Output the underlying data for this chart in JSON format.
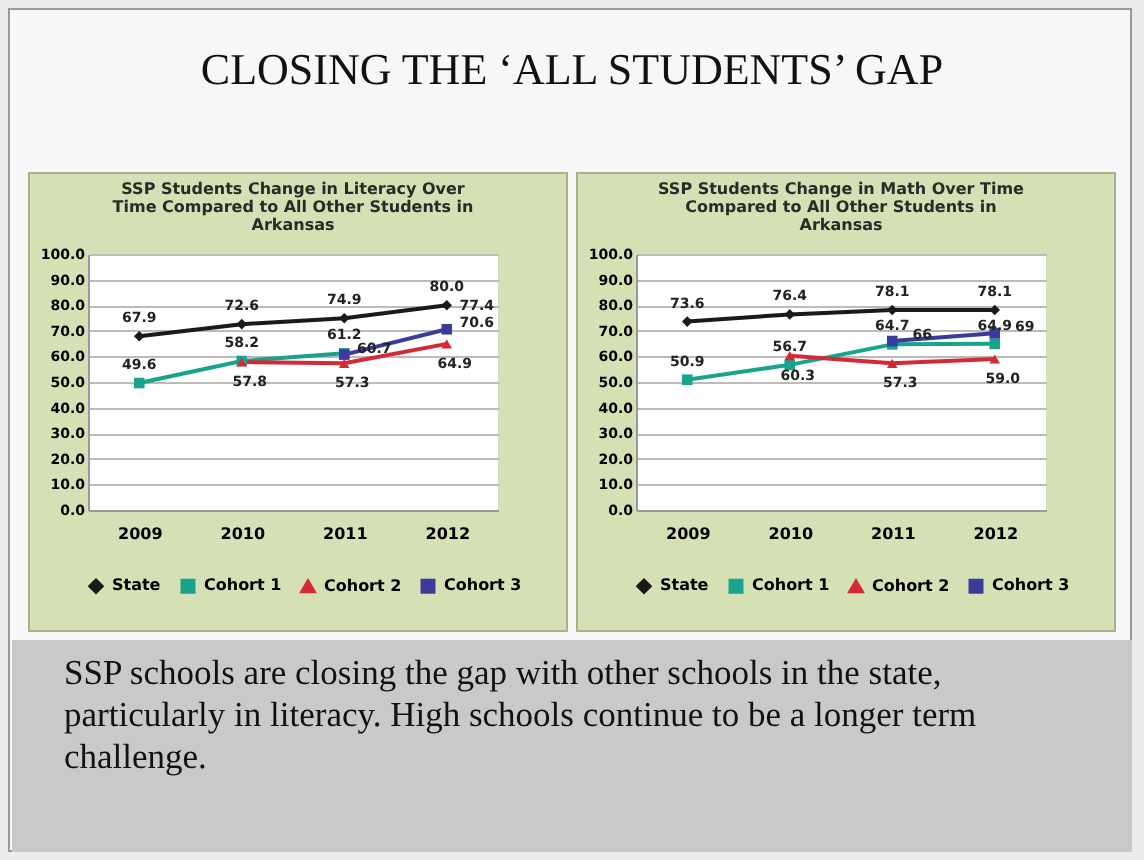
{
  "chart_data": [
    {
      "type": "line",
      "title": "SSP Students Change in Literacy Over Time Compared to All Other Students in Arkansas",
      "categories": [
        "2009",
        "2010",
        "2011",
        "2012"
      ],
      "series": [
        {
          "name": "State",
          "color": "#1a1a1a",
          "marker": "diamond",
          "values": [
            67.9,
            72.6,
            74.9,
            80.0
          ],
          "value_labels": [
            "67.9",
            "72.6",
            "74.9",
            "80.0"
          ]
        },
        {
          "name": "Cohort 1",
          "color": "#17a38c",
          "marker": "square",
          "values": [
            49.6,
            58.2,
            61.2,
            null
          ],
          "value_labels": [
            "49.6",
            "58.2",
            "61.2",
            null
          ]
        },
        {
          "name": "Cohort 2",
          "color": "#d42a36",
          "marker": "triangle",
          "values": [
            null,
            57.8,
            57.3,
            64.9
          ],
          "value_labels": [
            null,
            "57.8",
            "57.3",
            "64.9"
          ]
        },
        {
          "name": "Cohort 3",
          "color": "#3b3b9c",
          "marker": "square",
          "values": [
            null,
            null,
            60.7,
            70.6
          ],
          "value_labels": [
            null,
            null,
            "60.7",
            "70.6"
          ]
        }
      ],
      "annotations": [
        {
          "text": "77.4",
          "x": "2012",
          "y": 77.4
        }
      ],
      "ylim": [
        0,
        100
      ],
      "yticks": [
        {
          "value": 0,
          "label": "0.0"
        },
        {
          "value": 10,
          "label": "10.0"
        },
        {
          "value": 20,
          "label": "20.0"
        },
        {
          "value": 30,
          "label": "30.0"
        },
        {
          "value": 40,
          "label": "40.0"
        },
        {
          "value": 50,
          "label": "50.0"
        },
        {
          "value": 60,
          "label": "60.0"
        },
        {
          "value": 70,
          "label": "70.0"
        },
        {
          "value": 80,
          "label": "80.0"
        },
        {
          "value": 90,
          "label": "90.0"
        },
        {
          "value": 100,
          "label": "100.0"
        }
      ],
      "grid": "y",
      "legend": "bottom"
    },
    {
      "type": "line",
      "title": "SSP Students Change in Math Over Time Compared to All Other Students in Arkansas",
      "categories": [
        "2009",
        "2010",
        "2011",
        "2012"
      ],
      "series": [
        {
          "name": "State",
          "color": "#1a1a1a",
          "marker": "diamond",
          "values": [
            73.6,
            76.4,
            78.1,
            78.1
          ],
          "value_labels": [
            "73.6",
            "76.4",
            "78.1",
            "78.1"
          ]
        },
        {
          "name": "Cohort 1",
          "color": "#17a38c",
          "marker": "square",
          "values": [
            50.9,
            56.7,
            64.7,
            64.9
          ],
          "value_labels": [
            "50.9",
            "56.7",
            "64.7",
            "64.9"
          ]
        },
        {
          "name": "Cohort 2",
          "color": "#d42a36",
          "marker": "triangle",
          "values": [
            null,
            60.3,
            57.3,
            59.0
          ],
          "value_labels": [
            null,
            "60.3",
            "57.3",
            "59.0"
          ]
        },
        {
          "name": "Cohort 3",
          "color": "#3b3b9c",
          "marker": "square",
          "values": [
            null,
            null,
            66,
            69
          ],
          "value_labels": [
            null,
            null,
            "66",
            "69"
          ]
        }
      ],
      "ylim": [
        0,
        100
      ],
      "yticks": [
        {
          "value": 0,
          "label": "0.0"
        },
        {
          "value": 10,
          "label": "10.0"
        },
        {
          "value": 20,
          "label": "20.0"
        },
        {
          "value": 30,
          "label": "30.0"
        },
        {
          "value": 40,
          "label": "40.0"
        },
        {
          "value": 50,
          "label": "50.0"
        },
        {
          "value": 60,
          "label": "60.0"
        },
        {
          "value": 70,
          "label": "70.0"
        },
        {
          "value": 80,
          "label": "80.0"
        },
        {
          "value": 90,
          "label": "90.0"
        },
        {
          "value": 100,
          "label": "100.0"
        }
      ],
      "grid": "y",
      "legend": "bottom"
    },
    {
      "type": "other",
      "title": "CLOSING THE ‘ALL STUDENTS’ GAP",
      "annotations": [
        "SSP schools are closing the gap with other schools in the state, particularly in literacy. High schools continue to be a longer term challenge."
      ]
    }
  ]
}
